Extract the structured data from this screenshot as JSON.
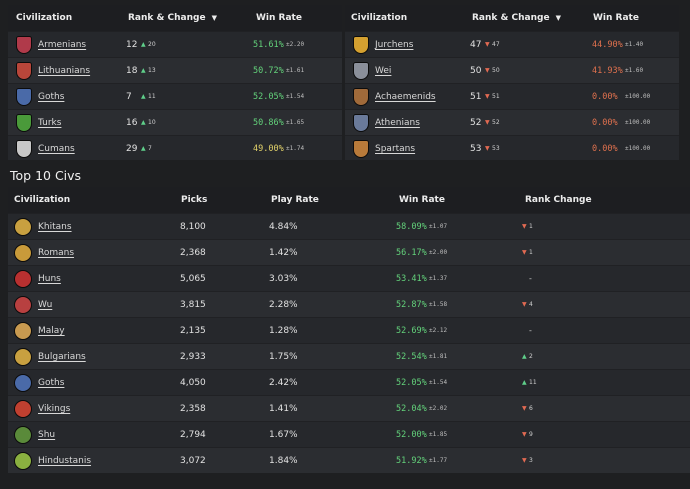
{
  "colors": {
    "background": "#1e1f21",
    "panel": "#26282c",
    "header": "#1d1e21",
    "positive": "#63d27b",
    "neutral": "#e3d36a",
    "negative": "#e0714e",
    "rank_up": "#5fcf8a",
    "rank_down": "#e26a52"
  },
  "best_table": {
    "headers": {
      "civ": "Civilization",
      "rank": "Rank & Change",
      "sort_icon": "▼",
      "win": "Win Rate"
    },
    "rows": [
      {
        "name": "Armenians",
        "icon": "armenians-emblem-icon",
        "color": "#b03a4a",
        "rank": "12",
        "arrow": "▲",
        "change": "20",
        "win": "51.61%",
        "pm": "±2.20"
      },
      {
        "name": "Lithuanians",
        "icon": "lithuanians-emblem-icon",
        "color": "#b8463a",
        "rank": "18",
        "arrow": "▲",
        "change": "13",
        "win": "50.72%",
        "pm": "±1.61"
      },
      {
        "name": "Goths",
        "icon": "goths-emblem-icon",
        "color": "#4a6aa8",
        "rank": "7",
        "arrow": "▲",
        "change": "11",
        "win": "52.05%",
        "pm": "±1.54"
      },
      {
        "name": "Turks",
        "icon": "turks-emblem-icon",
        "color": "#4a9a3a",
        "rank": "16",
        "arrow": "▲",
        "change": "10",
        "win": "50.86%",
        "pm": "±1.65"
      },
      {
        "name": "Cumans",
        "icon": "cumans-emblem-icon",
        "color": "#c8c8c8",
        "rank": "29",
        "arrow": "▲",
        "change": "7",
        "win": "49.00%",
        "pm": "±1.74"
      }
    ]
  },
  "worst_table": {
    "headers": {
      "civ": "Civilization",
      "rank": "Rank & Change",
      "sort_icon": "▼",
      "win": "Win Rate"
    },
    "rows": [
      {
        "name": "Jurchens",
        "icon": "jurchens-emblem-icon",
        "color": "#d4a030",
        "rank": "47",
        "arrow": "▼",
        "change": "47",
        "win": "44.90%",
        "pm": "±1.40"
      },
      {
        "name": "Wei",
        "icon": "wei-emblem-icon",
        "color": "#8a8f9a",
        "rank": "50",
        "arrow": "▼",
        "change": "50",
        "win": "41.93%",
        "pm": "±1.60"
      },
      {
        "name": "Achaemenids",
        "icon": "achaemenids-emblem-icon",
        "color": "#a06a3a",
        "rank": "51",
        "arrow": "▼",
        "change": "51",
        "win": "0.00%",
        "pm": "±100.00"
      },
      {
        "name": "Athenians",
        "icon": "athenians-emblem-icon",
        "color": "#6a7a9a",
        "rank": "52",
        "arrow": "▼",
        "change": "52",
        "win": "0.00%",
        "pm": "±100.00"
      },
      {
        "name": "Spartans",
        "icon": "spartans-emblem-icon",
        "color": "#b87a3a",
        "rank": "53",
        "arrow": "▼",
        "change": "53",
        "win": "0.00%",
        "pm": "±100.00"
      }
    ]
  },
  "top10": {
    "title": "Top 10 Civs",
    "headers": {
      "civ": "Civilization",
      "picks": "Picks",
      "play": "Play Rate",
      "win": "Win Rate",
      "change": "Rank Change"
    },
    "rows": [
      {
        "name": "Khitans",
        "icon": "khitans-emblem-icon",
        "color": "#c8a040",
        "picks": "8,100",
        "play": "4.84%",
        "win": "58.09%",
        "pm": "±1.07",
        "arrow": "▼",
        "change": "1"
      },
      {
        "name": "Romans",
        "icon": "romans-emblem-icon",
        "color": "#c89a3a",
        "picks": "2,368",
        "play": "1.42%",
        "win": "56.17%",
        "pm": "±2.00",
        "arrow": "▼",
        "change": "1"
      },
      {
        "name": "Huns",
        "icon": "huns-emblem-icon",
        "color": "#b83030",
        "picks": "5,065",
        "play": "3.03%",
        "win": "53.41%",
        "pm": "±1.37",
        "arrow": "",
        "change": "-"
      },
      {
        "name": "Wu",
        "icon": "wu-emblem-icon",
        "color": "#b84040",
        "picks": "3,815",
        "play": "2.28%",
        "win": "52.87%",
        "pm": "±1.58",
        "arrow": "▼",
        "change": "4"
      },
      {
        "name": "Malay",
        "icon": "malay-emblem-icon",
        "color": "#c89a50",
        "picks": "2,135",
        "play": "1.28%",
        "win": "52.69%",
        "pm": "±2.12",
        "arrow": "",
        "change": "-"
      },
      {
        "name": "Bulgarians",
        "icon": "bulgarians-emblem-icon",
        "color": "#c8a040",
        "picks": "2,933",
        "play": "1.75%",
        "win": "52.54%",
        "pm": "±1.81",
        "arrow": "▲",
        "change": "2"
      },
      {
        "name": "Goths",
        "icon": "goths-emblem-icon",
        "color": "#4a6aa8",
        "picks": "4,050",
        "play": "2.42%",
        "win": "52.05%",
        "pm": "±1.54",
        "arrow": "▲",
        "change": "11"
      },
      {
        "name": "Vikings",
        "icon": "vikings-emblem-icon",
        "color": "#c04030",
        "picks": "2,358",
        "play": "1.41%",
        "win": "52.04%",
        "pm": "±2.02",
        "arrow": "▼",
        "change": "6"
      },
      {
        "name": "Shu",
        "icon": "shu-emblem-icon",
        "color": "#5a8a3a",
        "picks": "2,794",
        "play": "1.67%",
        "win": "52.00%",
        "pm": "±1.85",
        "arrow": "▼",
        "change": "9"
      },
      {
        "name": "Hindustanis",
        "icon": "hindustanis-emblem-icon",
        "color": "#8ab040",
        "picks": "3,072",
        "play": "1.84%",
        "win": "51.92%",
        "pm": "±1.77",
        "arrow": "▼",
        "change": "3"
      }
    ]
  }
}
